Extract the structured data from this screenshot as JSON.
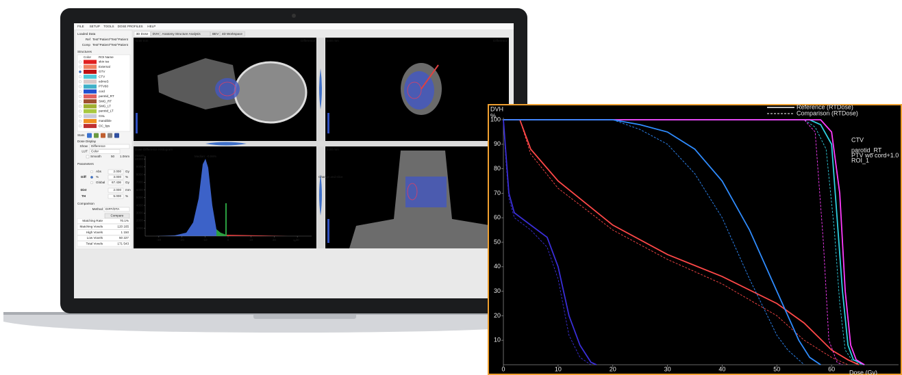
{
  "menu": [
    "FILE",
    "SETUP",
    "TOOLS",
    "DOSE PROFILES",
    "HELP"
  ],
  "tabs": [
    "3D Dose",
    "DVH",
    "Anatomy Structure Analysis",
    "BEV",
    "4D Workspace"
  ],
  "loaded_data": {
    "title": "Loaded Data",
    "rows": [
      {
        "label": "Ref",
        "value": "Test^Patient^Test^Patient"
      },
      {
        "label": "Comp",
        "value": "Test^Patient^Test^Patient"
      }
    ]
  },
  "structures": {
    "title": "Structures",
    "header": [
      "Color",
      "ROI Name"
    ],
    "rows": [
      {
        "name": "skin iso",
        "color": "#e02020"
      },
      {
        "name": "External",
        "color": "#f08060"
      },
      {
        "name": "GTV",
        "color": "#c01010"
      },
      {
        "name": "CTV",
        "color": "#50c8d8"
      },
      {
        "name": "edmoS",
        "color": "#d8c8c8"
      },
      {
        "name": "PTV60",
        "color": "#40b0c8"
      },
      {
        "name": "cord",
        "color": "#2050d0"
      },
      {
        "name": "parotid_RT",
        "color": "#e06060"
      },
      {
        "name": "SMG_RT",
        "color": "#a05030"
      },
      {
        "name": "SMG_LT",
        "color": "#a0b030"
      },
      {
        "name": "parotid_LT",
        "color": "#a8c840"
      },
      {
        "name": "GSL",
        "color": "#c8c8d8"
      },
      {
        "name": "mandible",
        "color": "#f09020"
      },
      {
        "name": "OC_lips",
        "color": "#c03030"
      }
    ]
  },
  "stats_label": "Stats",
  "dose_display": {
    "title": "Dose Display",
    "show_label": "Show",
    "show": "Difference",
    "lut_label": "LUT",
    "lut": "Color",
    "smooth_label": "Smooth",
    "smooth": "50",
    "smooth_unit": "1.0mm"
  },
  "parameters": {
    "title": "Parameters",
    "diff_label": "Diff",
    "rows": [
      {
        "label": "Abs",
        "value": "2.000",
        "unit": "Gy"
      },
      {
        "label": "%",
        "value": "3.000",
        "unit": "%"
      },
      {
        "label": "Global",
        "value": "67.436",
        "unit": "Gy"
      }
    ],
    "dist": {
      "label": "Dist",
      "value": "2.000",
      "unit": "mm"
    },
    "th": {
      "label": "TH",
      "value": "5.000",
      "unit": "%"
    }
  },
  "comparison": {
    "title": "Comparison",
    "method_label": "Method",
    "method": "DIFF/DTA",
    "button": "Compare",
    "results": [
      {
        "label": "Matching Rate",
        "value": "70.1%",
        "color": "#222"
      },
      {
        "label": "Matching Voxels",
        "value": "120 165",
        "color": "#1a9a1a"
      },
      {
        "label": "High Voxels",
        "value": "1 150",
        "color": "#e02020"
      },
      {
        "label": "Low Voxels",
        "value": "50 227",
        "color": "#222"
      },
      {
        "label": "Total Voxels",
        "value": "171 543",
        "color": "#222"
      }
    ]
  },
  "viewports": [
    {
      "depth": "-0.50 mm",
      "mode": "Difference"
    },
    {
      "depth": "0.00 mm",
      "mode": "Difference"
    },
    {
      "depth": "0.00 mm"
    }
  ],
  "histogram": {
    "title": "Dose Difference Histogram",
    "median": "Median: -0.96%",
    "y_label": "Voxels",
    "x_unit": "%",
    "xlim": [
      -35,
      35
    ],
    "ylim": [
      0,
      10500
    ],
    "xticks": [
      -30,
      -20,
      -10,
      0,
      10,
      20,
      30
    ],
    "yticks": [
      1000,
      2000,
      3000,
      4000,
      5000,
      6000,
      7000,
      8000,
      9000,
      10000
    ]
  },
  "tooltip": "Change and slice",
  "dvh": {
    "title": "DVH",
    "y_label": "%",
    "x_label": "Dose (Gy)",
    "reference_label": "Reference (RTDose)",
    "comparison_label": "Comparison (RTDose)",
    "xlim": [
      0,
      72
    ],
    "ylim": [
      0,
      100
    ],
    "xticks": [
      0,
      10,
      20,
      30,
      40,
      50,
      60
    ],
    "yticks": [
      10,
      20,
      30,
      40,
      50,
      60,
      70,
      80,
      90,
      100
    ],
    "structures": [
      {
        "name": "CTV",
        "color": "#2fd0e0",
        "reference": {
          "x": [
            0,
            56,
            58,
            60,
            61,
            62,
            63,
            64,
            66
          ],
          "values": [
            100,
            100,
            98,
            90,
            60,
            30,
            8,
            2,
            0
          ]
        },
        "comparison": {
          "x": [
            0,
            55,
            57,
            59,
            60.5,
            61.5,
            62.5,
            64,
            66
          ],
          "values": [
            100,
            100,
            97,
            88,
            55,
            25,
            6,
            1,
            0
          ]
        }
      },
      {
        "color": "#3a2ed8",
        "reference": {
          "x": [
            0,
            0.5,
            1,
            2,
            5,
            8,
            10,
            12,
            14,
            16,
            17
          ],
          "values": [
            100,
            85,
            70,
            62,
            57,
            52,
            40,
            20,
            8,
            1,
            0
          ]
        },
        "comparison": {
          "x": [
            0,
            0.5,
            1,
            2,
            5,
            8,
            10,
            12,
            14,
            16
          ],
          "values": [
            100,
            82,
            68,
            60,
            55,
            48,
            35,
            12,
            3,
            0
          ]
        }
      },
      {
        "name": "parotid_RT",
        "color": "#ff4848",
        "reference": {
          "x": [
            0,
            3,
            5,
            10,
            20,
            30,
            40,
            50,
            55,
            60,
            63,
            65
          ],
          "values": [
            100,
            100,
            88,
            75,
            57,
            45,
            36,
            25,
            17,
            6,
            2,
            0
          ]
        },
        "comparison": {
          "x": [
            0,
            3,
            5,
            10,
            20,
            30,
            40,
            50,
            55,
            60,
            63
          ],
          "values": [
            100,
            100,
            86,
            72,
            55,
            43,
            33,
            20,
            10,
            3,
            0
          ]
        }
      },
      {
        "name": "PTV wo cord+1.0",
        "color": "#ff3cff",
        "reference": {
          "x": [
            0,
            58,
            60,
            61.5,
            62.5,
            63.5,
            64.5,
            66
          ],
          "values": [
            100,
            100,
            95,
            70,
            30,
            8,
            2,
            0
          ]
        },
        "comparison": {
          "x": [
            0,
            55,
            57,
            58.5,
            59.5,
            61,
            62
          ],
          "values": [
            100,
            100,
            95,
            50,
            10,
            1,
            0
          ]
        }
      },
      {
        "name": "ROI_1",
        "color": "#2f8cff",
        "reference": {
          "x": [
            0,
            20,
            25,
            30,
            35,
            40,
            45,
            50,
            52,
            54,
            56,
            58
          ],
          "values": [
            100,
            100,
            98,
            95,
            88,
            75,
            55,
            30,
            20,
            10,
            3,
            0
          ]
        },
        "comparison": {
          "x": [
            0,
            20,
            25,
            30,
            35,
            40,
            45,
            50,
            52,
            55
          ],
          "values": [
            100,
            100,
            96,
            90,
            78,
            60,
            35,
            12,
            6,
            0
          ]
        }
      }
    ]
  }
}
